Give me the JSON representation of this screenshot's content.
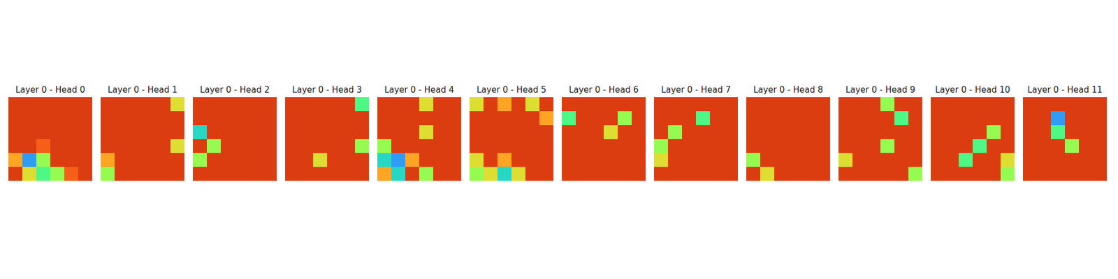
{
  "chart_data": [
    {
      "type": "heatmap",
      "title": "Layer 0 - Head 0",
      "zlim": [
        0,
        1
      ],
      "cells": [
        [
          0.85,
          0.85,
          0.85,
          0.85,
          0.85,
          0.85
        ],
        [
          0.85,
          0.85,
          0.85,
          0.85,
          0.85,
          0.85
        ],
        [
          0.85,
          0.85,
          0.85,
          0.85,
          0.85,
          0.85
        ],
        [
          0.85,
          0.85,
          0.8,
          0.85,
          0.85,
          0.85
        ],
        [
          0.7,
          0.2,
          0.5,
          0.85,
          0.85,
          0.85
        ],
        [
          0.85,
          0.6,
          0.4,
          0.5,
          0.8,
          0.85
        ]
      ]
    },
    {
      "type": "heatmap",
      "title": "Layer 0 - Head 1",
      "zlim": [
        0,
        1
      ],
      "cells": [
        [
          0.85,
          0.85,
          0.85,
          0.85,
          0.85,
          0.6
        ],
        [
          0.85,
          0.85,
          0.85,
          0.85,
          0.85,
          0.85
        ],
        [
          0.85,
          0.85,
          0.85,
          0.85,
          0.85,
          0.85
        ],
        [
          0.85,
          0.85,
          0.85,
          0.85,
          0.85,
          0.6
        ],
        [
          0.7,
          0.85,
          0.85,
          0.85,
          0.85,
          0.85
        ],
        [
          0.5,
          0.85,
          0.85,
          0.85,
          0.85,
          0.85
        ]
      ]
    },
    {
      "type": "heatmap",
      "title": "Layer 0 - Head 2",
      "zlim": [
        0,
        1
      ],
      "cells": [
        [
          0.85,
          0.85,
          0.85,
          0.85,
          0.85,
          0.85
        ],
        [
          0.85,
          0.85,
          0.85,
          0.85,
          0.85,
          0.85
        ],
        [
          0.3,
          0.85,
          0.85,
          0.85,
          0.85,
          0.85
        ],
        [
          0.85,
          0.5,
          0.85,
          0.85,
          0.85,
          0.85
        ],
        [
          0.5,
          0.85,
          0.85,
          0.85,
          0.85,
          0.85
        ],
        [
          0.85,
          0.85,
          0.85,
          0.85,
          0.85,
          0.85
        ]
      ]
    },
    {
      "type": "heatmap",
      "title": "Layer 0 - Head 3",
      "zlim": [
        0,
        1
      ],
      "cells": [
        [
          0.85,
          0.85,
          0.85,
          0.85,
          0.85,
          0.4
        ],
        [
          0.85,
          0.85,
          0.85,
          0.85,
          0.85,
          0.85
        ],
        [
          0.85,
          0.85,
          0.85,
          0.85,
          0.85,
          0.85
        ],
        [
          0.85,
          0.85,
          0.85,
          0.85,
          0.85,
          0.5
        ],
        [
          0.85,
          0.85,
          0.6,
          0.85,
          0.85,
          0.85
        ],
        [
          0.85,
          0.85,
          0.85,
          0.85,
          0.85,
          0.85
        ]
      ]
    },
    {
      "type": "heatmap",
      "title": "Layer 0 - Head 4",
      "zlim": [
        0,
        1
      ],
      "cells": [
        [
          0.85,
          0.85,
          0.85,
          0.6,
          0.85,
          0.85
        ],
        [
          0.85,
          0.85,
          0.85,
          0.85,
          0.85,
          0.85
        ],
        [
          0.85,
          0.85,
          0.85,
          0.6,
          0.85,
          0.85
        ],
        [
          0.5,
          0.85,
          0.85,
          0.85,
          0.85,
          0.85
        ],
        [
          0.3,
          0.2,
          0.7,
          0.85,
          0.85,
          0.85
        ],
        [
          0.7,
          0.3,
          0.85,
          0.5,
          0.85,
          0.85
        ]
      ]
    },
    {
      "type": "heatmap",
      "title": "Layer 0 - Head 5",
      "zlim": [
        0,
        1
      ],
      "cells": [
        [
          0.6,
          0.85,
          0.7,
          0.85,
          0.6,
          0.85
        ],
        [
          0.85,
          0.85,
          0.85,
          0.85,
          0.85,
          0.7
        ],
        [
          0.85,
          0.85,
          0.85,
          0.85,
          0.85,
          0.85
        ],
        [
          0.85,
          0.85,
          0.85,
          0.85,
          0.85,
          0.85
        ],
        [
          0.6,
          0.85,
          0.7,
          0.85,
          0.85,
          0.85
        ],
        [
          0.5,
          0.6,
          0.3,
          0.6,
          0.85,
          0.85
        ]
      ]
    },
    {
      "type": "heatmap",
      "title": "Layer 0 - Head 6",
      "zlim": [
        0,
        1
      ],
      "cells": [
        [
          0.85,
          0.85,
          0.85,
          0.85,
          0.85,
          0.85
        ],
        [
          0.4,
          0.85,
          0.85,
          0.85,
          0.5,
          0.85
        ],
        [
          0.85,
          0.85,
          0.85,
          0.6,
          0.85,
          0.85
        ],
        [
          0.85,
          0.85,
          0.85,
          0.85,
          0.85,
          0.85
        ],
        [
          0.85,
          0.85,
          0.85,
          0.85,
          0.85,
          0.85
        ],
        [
          0.85,
          0.85,
          0.85,
          0.85,
          0.85,
          0.85
        ]
      ]
    },
    {
      "type": "heatmap",
      "title": "Layer 0 - Head 7",
      "zlim": [
        0,
        1
      ],
      "cells": [
        [
          0.85,
          0.85,
          0.85,
          0.85,
          0.85,
          0.85
        ],
        [
          0.85,
          0.85,
          0.85,
          0.4,
          0.85,
          0.85
        ],
        [
          0.85,
          0.5,
          0.85,
          0.85,
          0.85,
          0.85
        ],
        [
          0.5,
          0.85,
          0.85,
          0.85,
          0.85,
          0.85
        ],
        [
          0.6,
          0.85,
          0.85,
          0.85,
          0.85,
          0.85
        ],
        [
          0.85,
          0.85,
          0.85,
          0.85,
          0.85,
          0.85
        ]
      ]
    },
    {
      "type": "heatmap",
      "title": "Layer 0 - Head 8",
      "zlim": [
        0,
        1
      ],
      "cells": [
        [
          0.85,
          0.85,
          0.85,
          0.85,
          0.85,
          0.85
        ],
        [
          0.85,
          0.85,
          0.85,
          0.85,
          0.85,
          0.85
        ],
        [
          0.85,
          0.85,
          0.85,
          0.85,
          0.85,
          0.85
        ],
        [
          0.85,
          0.85,
          0.85,
          0.85,
          0.85,
          0.85
        ],
        [
          0.5,
          0.85,
          0.85,
          0.85,
          0.85,
          0.85
        ],
        [
          0.85,
          0.6,
          0.85,
          0.85,
          0.85,
          0.85
        ]
      ]
    },
    {
      "type": "heatmap",
      "title": "Layer 0 - Head 9",
      "zlim": [
        0,
        1
      ],
      "cells": [
        [
          0.85,
          0.85,
          0.85,
          0.5,
          0.85,
          0.85
        ],
        [
          0.85,
          0.85,
          0.85,
          0.85,
          0.4,
          0.85
        ],
        [
          0.85,
          0.85,
          0.85,
          0.85,
          0.85,
          0.85
        ],
        [
          0.85,
          0.85,
          0.85,
          0.5,
          0.85,
          0.85
        ],
        [
          0.6,
          0.85,
          0.85,
          0.85,
          0.85,
          0.85
        ],
        [
          0.85,
          0.85,
          0.85,
          0.85,
          0.85,
          0.5
        ]
      ]
    },
    {
      "type": "heatmap",
      "title": "Layer 0 - Head 10",
      "zlim": [
        0,
        1
      ],
      "cells": [
        [
          0.85,
          0.85,
          0.85,
          0.85,
          0.85,
          0.85
        ],
        [
          0.85,
          0.85,
          0.85,
          0.85,
          0.85,
          0.85
        ],
        [
          0.85,
          0.85,
          0.85,
          0.85,
          0.5,
          0.85
        ],
        [
          0.85,
          0.85,
          0.85,
          0.4,
          0.85,
          0.85
        ],
        [
          0.85,
          0.85,
          0.4,
          0.85,
          0.85,
          0.6
        ],
        [
          0.85,
          0.85,
          0.85,
          0.85,
          0.85,
          0.5
        ]
      ]
    },
    {
      "type": "heatmap",
      "title": "Layer 0 - Head 11",
      "zlim": [
        0,
        1
      ],
      "cells": [
        [
          0.85,
          0.85,
          0.85,
          0.85,
          0.85,
          0.85
        ],
        [
          0.85,
          0.85,
          0.2,
          0.85,
          0.85,
          0.85
        ],
        [
          0.85,
          0.85,
          0.4,
          0.85,
          0.85,
          0.85
        ],
        [
          0.85,
          0.85,
          0.85,
          0.5,
          0.85,
          0.85
        ],
        [
          0.85,
          0.85,
          0.85,
          0.85,
          0.85,
          0.85
        ],
        [
          0.85,
          0.85,
          0.85,
          0.85,
          0.85,
          0.85
        ]
      ]
    }
  ]
}
